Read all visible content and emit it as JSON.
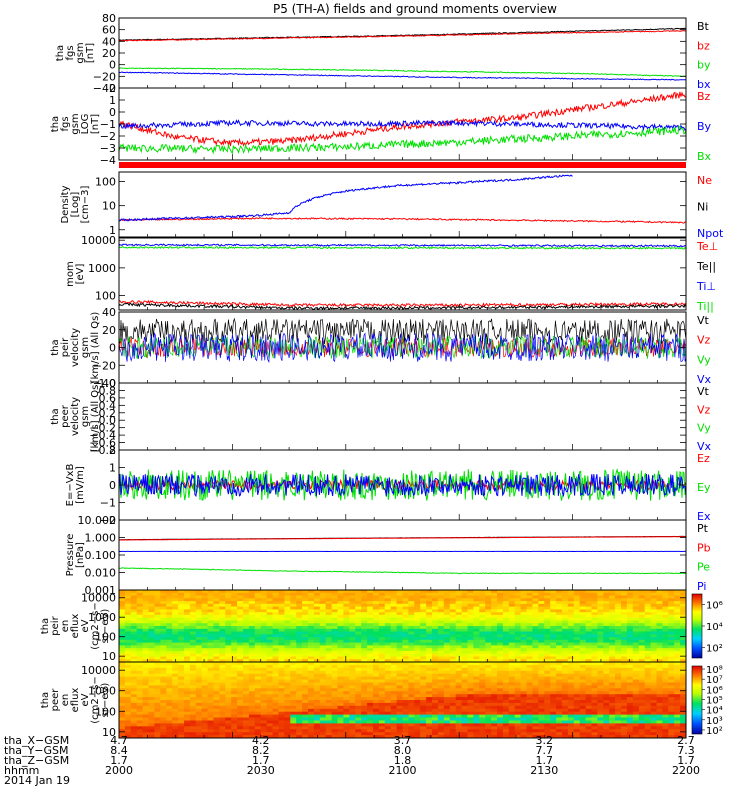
{
  "title": "P5 (TH-A) fields and ground moments overview",
  "colors": {
    "black": "#000000",
    "red": "#ff0000",
    "green": "#00e000",
    "blue": "#0000ff"
  },
  "chart_data": [
    {
      "type": "line",
      "ylabel": [
        "tha",
        "fgs",
        "gsm",
        "[nT]"
      ],
      "yticks": [
        "80",
        "60",
        "40",
        "20",
        "0",
        "−20",
        "−40"
      ],
      "ylim": [
        -40,
        80
      ],
      "series": [
        {
          "name": "Bt",
          "color": "black",
          "x": [
            0,
            0.25,
            0.5,
            0.75,
            1
          ],
          "y": [
            42,
            46,
            50,
            56,
            62
          ],
          "noise": 0.4
        },
        {
          "name": "bz",
          "color": "red",
          "x": [
            0,
            0.25,
            0.5,
            0.75,
            1
          ],
          "y": [
            41,
            45,
            49,
            54,
            58
          ],
          "noise": 0.4
        },
        {
          "name": "by",
          "color": "green",
          "x": [
            0,
            0.2,
            0.4,
            0.6,
            0.8,
            1
          ],
          "y": [
            -6,
            -7,
            -9,
            -12,
            -15,
            -20
          ],
          "noise": 0.4
        },
        {
          "name": "bx",
          "color": "blue",
          "x": [
            0,
            0.2,
            0.4,
            0.6,
            0.8,
            1
          ],
          "y": [
            -13,
            -16,
            -19,
            -22,
            -24,
            -26
          ],
          "noise": 0.4
        }
      ]
    },
    {
      "type": "line",
      "ylabel": [
        "tha",
        "fgs",
        "gsm",
        "LOG",
        "[nT]"
      ],
      "yticks": [
        "2",
        "1",
        "0",
        "−1",
        "−2",
        "−3",
        "−4"
      ],
      "ylim": [
        -4,
        2
      ],
      "series": [
        {
          "name": "Bz",
          "color": "red",
          "x": [
            0,
            0.1,
            0.2,
            0.3,
            0.4,
            0.5,
            0.6,
            0.7,
            0.8,
            0.9,
            1
          ],
          "y": [
            -0.9,
            -2.1,
            -2.6,
            -2.4,
            -1.8,
            -1.2,
            -0.8,
            -0.5,
            0.2,
            0.8,
            1.5
          ],
          "noise": 0.15
        },
        {
          "name": "By",
          "color": "blue",
          "x": [
            0,
            0.2,
            0.4,
            0.6,
            0.8,
            1
          ],
          "y": [
            -1.2,
            -0.9,
            -1.0,
            -0.9,
            -1.1,
            -1.3
          ],
          "noise": 0.12
        },
        {
          "name": "Bx",
          "color": "green",
          "x": [
            0,
            0.2,
            0.4,
            0.6,
            0.8,
            1
          ],
          "y": [
            -3.0,
            -3.1,
            -2.9,
            -2.5,
            -2.0,
            -1.5
          ],
          "noise": 0.18
        }
      ]
    },
    {
      "type": "line",
      "ylabel": [
        "Density",
        "[Log]",
        "[cm−3]"
      ],
      "yticks": [
        "100",
        "10",
        "1"
      ],
      "ylim": [
        0.5,
        250
      ],
      "scale": "log",
      "series": [
        {
          "name": "Ne",
          "color": "red",
          "x": [
            0,
            0.25,
            0.5,
            0.75,
            1
          ],
          "y": [
            2.5,
            3,
            2.8,
            2.4,
            2
          ],
          "noise": 0.03
        },
        {
          "name": "Ni",
          "color": "black",
          "x": [],
          "y": []
        },
        {
          "name": "Npot",
          "color": "blue",
          "x": [
            0,
            0.1,
            0.2,
            0.25,
            0.3,
            0.33,
            0.4,
            0.5,
            0.6,
            0.7,
            0.8
          ],
          "y": [
            2.5,
            3,
            3.5,
            4,
            5,
            15,
            40,
            70,
            90,
            120,
            180
          ],
          "noise": 0.04
        }
      ]
    },
    {
      "type": "line",
      "ylabel": [
        "mom",
        "[eV]"
      ],
      "yticks": [
        "10000",
        "1000",
        "100"
      ],
      "ylim": [
        30,
        12000
      ],
      "scale": "log",
      "series": [
        {
          "name": "Te⊥",
          "color": "red",
          "x": [
            0,
            0.3,
            0.6,
            1
          ],
          "y": [
            60,
            45,
            45,
            50
          ],
          "noise": 0.05
        },
        {
          "name": "Te||",
          "color": "black",
          "x": [
            0,
            0.3,
            0.6,
            1
          ],
          "y": [
            48,
            35,
            36,
            42
          ],
          "noise": 0.05
        },
        {
          "name": "Ti⊥",
          "color": "blue",
          "x": [
            0,
            0.5,
            1
          ],
          "y": [
            6800,
            6500,
            6200
          ],
          "noise": 0.03
        },
        {
          "name": "Ti||",
          "color": "green",
          "x": [
            0,
            0.5,
            1
          ],
          "y": [
            5500,
            5300,
            5100
          ],
          "noise": 0.03
        }
      ]
    },
    {
      "type": "line",
      "ylabel": [
        "tha",
        "peir",
        "velocity",
        "gsm",
        "[km/s] (All Qs)"
      ],
      "yticks": [
        "40",
        "20",
        "0",
        "−20",
        "−40"
      ],
      "ylim": [
        -40,
        40
      ],
      "series": [
        {
          "name": "Vt",
          "color": "black",
          "x": [
            0,
            1
          ],
          "y": [
            18,
            18
          ],
          "noise": 8
        },
        {
          "name": "Vz",
          "color": "red",
          "x": [
            0,
            1
          ],
          "y": [
            0,
            0
          ],
          "noise": 6
        },
        {
          "name": "Vy",
          "color": "green",
          "x": [
            0,
            1
          ],
          "y": [
            0,
            0
          ],
          "noise": 7
        },
        {
          "name": "Vx",
          "color": "blue",
          "x": [
            0,
            1
          ],
          "y": [
            0,
            0
          ],
          "noise": 9
        }
      ]
    },
    {
      "type": "line",
      "ylabel": [
        "tha",
        "peer",
        "velocity",
        "gsm",
        "[km/s] (All Qs)"
      ],
      "yticks": [
        "1.0",
        "0.8",
        "0.6",
        "0.4",
        "0.2",
        "0.0",
        "−0.2",
        "−0.4",
        "−0.6",
        "−0.8"
      ],
      "ylim": [
        -0.8,
        1.0
      ],
      "series": [
        {
          "name": "Vt",
          "color": "black",
          "x": [],
          "y": []
        },
        {
          "name": "Vz",
          "color": "red",
          "x": [],
          "y": []
        },
        {
          "name": "Vy",
          "color": "green",
          "x": [],
          "y": []
        },
        {
          "name": "Vx",
          "color": "blue",
          "x": [],
          "y": []
        }
      ]
    },
    {
      "type": "line",
      "ylabel": [
        "E=−VxB",
        "[mV/m]"
      ],
      "yticks": [
        "2",
        "1",
        "0",
        "−1",
        "−2"
      ],
      "ylim": [
        -2,
        2
      ],
      "series": [
        {
          "name": "Ez",
          "color": "red",
          "x": [
            0,
            1
          ],
          "y": [
            0,
            0
          ],
          "noise": 0.15
        },
        {
          "name": "Ey",
          "color": "green",
          "x": [
            0,
            1
          ],
          "y": [
            0,
            0
          ],
          "noise": 0.5
        },
        {
          "name": "Ex",
          "color": "blue",
          "x": [
            0,
            1
          ],
          "y": [
            0,
            0
          ],
          "noise": 0.35
        }
      ]
    },
    {
      "type": "line",
      "ylabel": [
        "Pressure",
        "[nPa]"
      ],
      "yticks": [
        "10.000",
        "1.000",
        "0.100",
        "0.010",
        "0.001"
      ],
      "ylim": [
        0.001,
        10
      ],
      "scale": "log",
      "series": [
        {
          "name": "Pt",
          "color": "black",
          "x": [
            0,
            0.5,
            1
          ],
          "y": [
            0.75,
            0.95,
            1.15
          ],
          "noise": 0.005
        },
        {
          "name": "Pb",
          "color": "red",
          "x": [
            0,
            0.5,
            1
          ],
          "y": [
            0.72,
            0.92,
            1.12
          ],
          "noise": 0.005
        },
        {
          "name": "Pe",
          "color": "green",
          "x": [
            0,
            0.3,
            0.6,
            1
          ],
          "y": [
            0.018,
            0.012,
            0.009,
            0.009
          ],
          "noise": 0.02
        },
        {
          "name": "Pi",
          "color": "blue",
          "x": [
            0,
            1
          ],
          "y": [
            0.16,
            0.16
          ],
          "noise": 0.003
        }
      ]
    },
    {
      "type": "heatmap",
      "ylabel": [
        "tha",
        "peir",
        "en",
        "eflux",
        "eV",
        "(cm2−s−",
        "sr−eV)"
      ],
      "yticks": [
        "10000",
        "1000",
        "100",
        "10"
      ],
      "ylim": [
        5,
        25000
      ],
      "scale": "log",
      "colorbar_ticks": [
        "10⁶",
        "10⁴",
        "10²"
      ],
      "colorbar_log_range": [
        1,
        7
      ]
    },
    {
      "type": "heatmap",
      "ylabel": [
        "tha",
        "peer",
        "en",
        "eflux",
        "eV",
        "(cm2−s−",
        "sr−eV)"
      ],
      "yticks": [
        "10000",
        "1000",
        "100",
        "10"
      ],
      "ylim": [
        5,
        25000
      ],
      "scale": "log",
      "colorbar_ticks": [
        "10⁸",
        "10⁷",
        "10⁶",
        "10⁵",
        "10⁴",
        "10³",
        "10²"
      ],
      "colorbar_log_range": [
        1.6,
        8.3
      ]
    }
  ],
  "x_axis": {
    "rows": [
      {
        "label": "tha_X−GSM",
        "values": [
          "4.7",
          "4.2",
          "3.7",
          "3.2",
          "2.7"
        ]
      },
      {
        "label": "tha_Y−GSM",
        "values": [
          "8.4",
          "8.2",
          "8.0",
          "7.7",
          "7.3"
        ]
      },
      {
        "label": "tha_Z−GSM",
        "values": [
          "1.7",
          "1.7",
          "1.8",
          "1.7",
          "1.7"
        ]
      },
      {
        "label": "hhmm",
        "values": [
          "2000",
          "2030",
          "2100",
          "2130",
          "2200"
        ]
      }
    ],
    "date": "2014 Jan 19"
  }
}
